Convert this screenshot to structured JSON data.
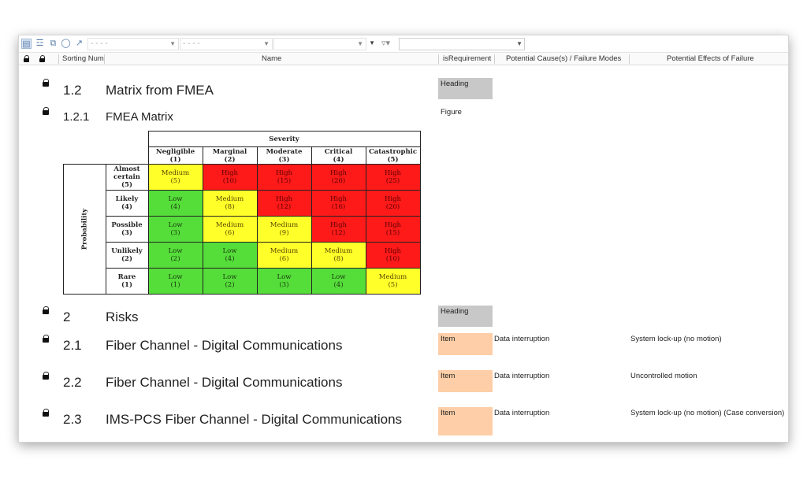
{
  "toolbar": {
    "icons": [
      "document-icon",
      "tree-icon",
      "copy-icon",
      "view-icon",
      "export-icon"
    ],
    "combo1": "- - - -",
    "combo2": "- - - -",
    "combo3": "",
    "filter_icon": "filter-icon",
    "search_value": ""
  },
  "columns": {
    "sorting_num": "Sorting Num",
    "name": "Name",
    "is_requirement": "isRequirement",
    "potential_causes": "Potential Cause(s) / Failure Modes",
    "potential_effects": "Potential Effects of Failure"
  },
  "rows": [
    {
      "num": "1.2",
      "title": "Matrix from FMEA",
      "type": "Heading",
      "cause": "",
      "effect": ""
    },
    {
      "num": "1.2.1",
      "title": "FMEA Matrix",
      "type": "Figure",
      "cause": "",
      "effect": ""
    },
    {
      "num": "2",
      "title": "Risks",
      "type": "Heading",
      "cause": "",
      "effect": ""
    },
    {
      "num": "2.1",
      "title": "Fiber Channel - Digital Communications",
      "type": "Item",
      "cause": "Data interruption",
      "effect": "System lock-up (no motion)"
    },
    {
      "num": "2.2",
      "title": "Fiber Channel - Digital Communications",
      "type": "Item",
      "cause": "Data interruption",
      "effect": "Uncontrolled motion"
    },
    {
      "num": "2.3",
      "title": "IMS-PCS Fiber Channel - Digital Communications",
      "type": "Item",
      "cause": "Data interruption",
      "effect": "System lock-up (no motion) (Case conversion)"
    }
  ],
  "matrix": {
    "severity_label": "Severity",
    "probability_label": "Probability",
    "severity_cols": [
      {
        "l1": "Negligible",
        "l2": "(1)"
      },
      {
        "l1": "Marginal",
        "l2": "(2)"
      },
      {
        "l1": "Moderate",
        "l2": "(3)"
      },
      {
        "l1": "Critical",
        "l2": "(4)"
      },
      {
        "l1": "Catastrophic",
        "l2": "(5)"
      }
    ],
    "probability_rows": [
      {
        "l1": "Almost",
        "l2": "certain",
        "l3": "(5)"
      },
      {
        "l1": "Likely",
        "l2": "(4)",
        "l3": ""
      },
      {
        "l1": "Possible",
        "l2": "(3)",
        "l3": ""
      },
      {
        "l1": "Unlikely",
        "l2": "(2)",
        "l3": ""
      },
      {
        "l1": "Rare",
        "l2": "(1)",
        "l3": ""
      }
    ],
    "cells": [
      [
        {
          "t": "Medium",
          "v": "(5)",
          "c": "y"
        },
        {
          "t": "High",
          "v": "(10)",
          "c": "r"
        },
        {
          "t": "High",
          "v": "(15)",
          "c": "r"
        },
        {
          "t": "High",
          "v": "(20)",
          "c": "r"
        },
        {
          "t": "High",
          "v": "(25)",
          "c": "r"
        }
      ],
      [
        {
          "t": "Low",
          "v": "(4)",
          "c": "g"
        },
        {
          "t": "Medium",
          "v": "(8)",
          "c": "y"
        },
        {
          "t": "High",
          "v": "(12)",
          "c": "r"
        },
        {
          "t": "High",
          "v": "(16)",
          "c": "r"
        },
        {
          "t": "High",
          "v": "(20)",
          "c": "r"
        }
      ],
      [
        {
          "t": "Low",
          "v": "(3)",
          "c": "g"
        },
        {
          "t": "Medium",
          "v": "(6)",
          "c": "y"
        },
        {
          "t": "Medium",
          "v": "(9)",
          "c": "y"
        },
        {
          "t": "High",
          "v": "(12)",
          "c": "r"
        },
        {
          "t": "High",
          "v": "(15)",
          "c": "r"
        }
      ],
      [
        {
          "t": "Low",
          "v": "(2)",
          "c": "g"
        },
        {
          "t": "Low",
          "v": "(4)",
          "c": "g"
        },
        {
          "t": "Medium",
          "v": "(6)",
          "c": "y"
        },
        {
          "t": "Medium",
          "v": "(8)",
          "c": "y"
        },
        {
          "t": "High",
          "v": "(10)",
          "c": "r"
        }
      ],
      [
        {
          "t": "Low",
          "v": "(1)",
          "c": "g"
        },
        {
          "t": "Low",
          "v": "(2)",
          "c": "g"
        },
        {
          "t": "Low",
          "v": "(3)",
          "c": "g"
        },
        {
          "t": "Low",
          "v": "(4)",
          "c": "g"
        },
        {
          "t": "Medium",
          "v": "(5)",
          "c": "y"
        }
      ]
    ]
  },
  "colors": {
    "heading_box": "#c8c8c8",
    "item_box": "#fdcea7",
    "low": "#55dd3a",
    "medium": "#ffff2a",
    "high": "#ff1a1a"
  }
}
